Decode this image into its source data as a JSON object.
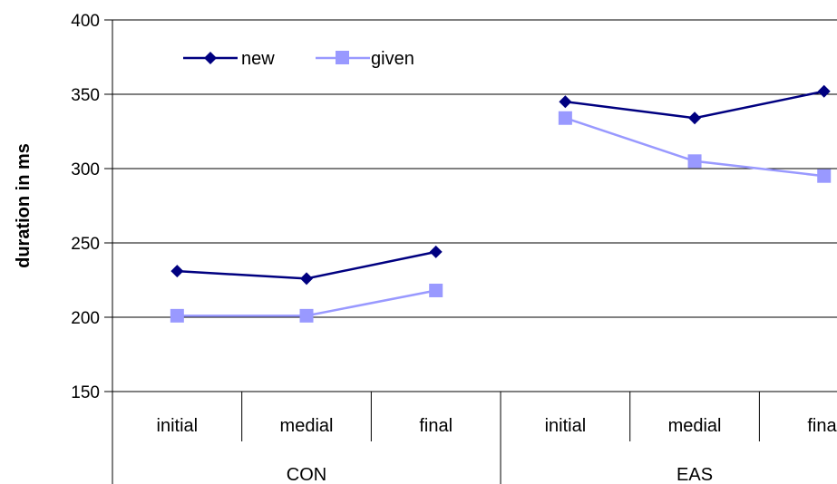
{
  "chart_data": {
    "type": "line",
    "ylabel": "duration in ms",
    "ylim": [
      150,
      400
    ],
    "yticks": [
      150,
      200,
      250,
      300,
      350,
      400
    ],
    "grid": true,
    "legend_position": "top-left",
    "categories": [
      "initial",
      "medial",
      "final",
      "initial",
      "medial",
      "final"
    ],
    "groups": [
      {
        "label": "CON",
        "span": 3
      },
      {
        "label": "EAS",
        "span": 3
      }
    ],
    "series": [
      {
        "name": "new",
        "color": "#000080",
        "marker": "diamond",
        "segments": [
          [
            231,
            226,
            244
          ],
          [
            345,
            334,
            352
          ]
        ]
      },
      {
        "name": "given",
        "color": "#9999ff",
        "marker": "square",
        "segments": [
          [
            201,
            201,
            218
          ],
          [
            334,
            305,
            295
          ]
        ]
      }
    ]
  }
}
